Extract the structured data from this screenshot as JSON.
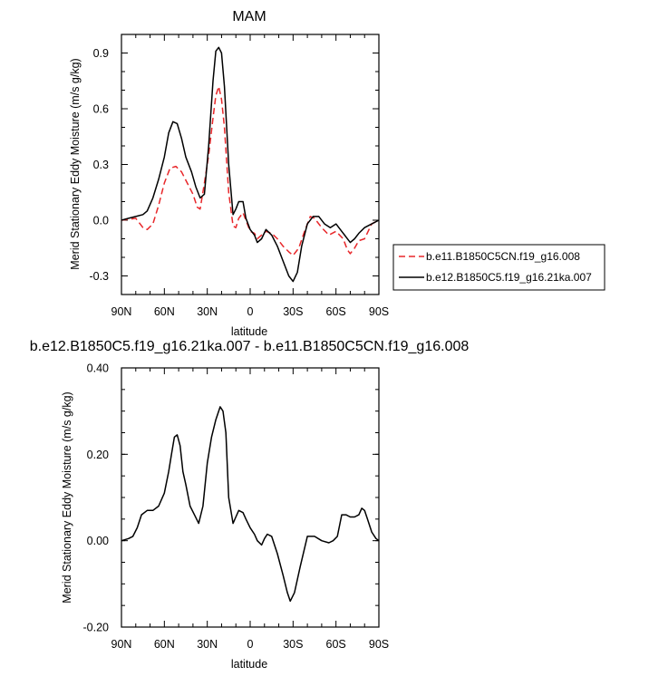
{
  "chart_data": [
    {
      "type": "line",
      "title": "MAM",
      "xlabel": "latitude",
      "ylabel": "Merid Stationary Eddy Moisture (m/s g/kg)",
      "xlim": [
        90,
        -90
      ],
      "ylim": [
        -0.4,
        1.0
      ],
      "xticks": [
        {
          "value": 90,
          "label": "90N"
        },
        {
          "value": 60,
          "label": "60N"
        },
        {
          "value": 30,
          "label": "30N"
        },
        {
          "value": 0,
          "label": "0"
        },
        {
          "value": -30,
          "label": "30S"
        },
        {
          "value": -60,
          "label": "60S"
        },
        {
          "value": -90,
          "label": "90S"
        }
      ],
      "yticks": [
        {
          "value": -0.3,
          "label": "-0.3"
        },
        {
          "value": 0,
          "label": "0.0"
        },
        {
          "value": 0.3,
          "label": "0.3"
        },
        {
          "value": 0.6,
          "label": "0.6"
        },
        {
          "value": 0.9,
          "label": "0.9"
        }
      ],
      "legend_position": "right",
      "series": [
        {
          "name": "b.e11.B1850C5CN.f19_g16.008",
          "color": "#e8272a",
          "dash": "dashed",
          "x": [
            90,
            85,
            80,
            75,
            72,
            68,
            64,
            60,
            56,
            52,
            48,
            44,
            40,
            37,
            35,
            32,
            29,
            26,
            24,
            22,
            20,
            18,
            15,
            12,
            10,
            8,
            5,
            3,
            0,
            -3,
            -5,
            -8,
            -11,
            -15,
            -19,
            -23,
            -27,
            -30,
            -34,
            -38,
            -42,
            -45,
            -50,
            -55,
            -60,
            -65,
            -68,
            -70,
            -73,
            -76,
            -80,
            -85,
            -90
          ],
          "y": [
            0.0,
            0.005,
            0.01,
            -0.04,
            -0.05,
            -0.02,
            0.08,
            0.2,
            0.28,
            0.29,
            0.26,
            0.2,
            0.14,
            0.07,
            0.06,
            0.2,
            0.35,
            0.55,
            0.67,
            0.72,
            0.65,
            0.5,
            0.15,
            -0.03,
            -0.04,
            0.01,
            0.04,
            0.0,
            -0.06,
            -0.07,
            -0.1,
            -0.08,
            -0.06,
            -0.07,
            -0.1,
            -0.14,
            -0.17,
            -0.19,
            -0.15,
            -0.06,
            0.02,
            0.01,
            -0.04,
            -0.08,
            -0.06,
            -0.1,
            -0.16,
            -0.18,
            -0.15,
            -0.11,
            -0.1,
            -0.02,
            0.0
          ]
        },
        {
          "name": "b.e12.B1850C5.f19_g16.21ka.007",
          "color": "#000000",
          "dash": "solid",
          "x": [
            90,
            85,
            80,
            75,
            72,
            68,
            64,
            60,
            57,
            54,
            51,
            48,
            45,
            41,
            38,
            35,
            32,
            29,
            26,
            24,
            22,
            20,
            18,
            15,
            12,
            10,
            8,
            5,
            3,
            0,
            -3,
            -5,
            -8,
            -11,
            -15,
            -19,
            -23,
            -27,
            -30,
            -33,
            -36,
            -40,
            -44,
            -48,
            -52,
            -56,
            -60,
            -64,
            -67,
            -70,
            -73,
            -76,
            -80,
            -85,
            -90
          ],
          "y": [
            0.0,
            0.01,
            0.02,
            0.03,
            0.05,
            0.12,
            0.22,
            0.34,
            0.47,
            0.53,
            0.52,
            0.44,
            0.34,
            0.26,
            0.18,
            0.12,
            0.14,
            0.4,
            0.75,
            0.91,
            0.93,
            0.9,
            0.72,
            0.3,
            0.03,
            0.06,
            0.1,
            0.1,
            0.01,
            -0.05,
            -0.08,
            -0.12,
            -0.1,
            -0.05,
            -0.08,
            -0.14,
            -0.22,
            -0.3,
            -0.33,
            -0.28,
            -0.14,
            -0.02,
            0.02,
            0.02,
            -0.02,
            -0.04,
            -0.02,
            -0.06,
            -0.09,
            -0.12,
            -0.1,
            -0.07,
            -0.04,
            -0.02,
            0.0
          ]
        }
      ]
    },
    {
      "type": "line",
      "title": "b.e12.B1850C5.f19_g16.21ka.007 - b.e11.B1850C5CN.f19_g16.008",
      "xlabel": "latitude",
      "ylabel": "Merid Stationary Eddy Moisture (m/s g/kg)",
      "xlim": [
        90,
        -90
      ],
      "ylim": [
        -0.2,
        0.4
      ],
      "xticks": [
        {
          "value": 90,
          "label": "90N"
        },
        {
          "value": 60,
          "label": "60N"
        },
        {
          "value": 30,
          "label": "30N"
        },
        {
          "value": 0,
          "label": "0"
        },
        {
          "value": -30,
          "label": "30S"
        },
        {
          "value": -60,
          "label": "60S"
        },
        {
          "value": -90,
          "label": "90S"
        }
      ],
      "yticks": [
        {
          "value": -0.2,
          "label": "-0.20"
        },
        {
          "value": 0.0,
          "label": "0.00"
        },
        {
          "value": 0.2,
          "label": "0.20"
        },
        {
          "value": 0.4,
          "label": "0.40"
        }
      ],
      "series": [
        {
          "color": "#000000",
          "dash": "solid",
          "x": [
            90,
            85,
            82,
            79,
            76,
            72,
            68,
            64,
            60,
            57,
            55,
            53,
            51,
            49,
            47,
            45,
            42,
            39,
            36,
            33,
            30,
            27,
            24,
            21,
            19,
            17,
            15,
            12,
            10,
            8,
            5,
            3,
            0,
            -3,
            -5,
            -8,
            -10,
            -12,
            -15,
            -19,
            -23,
            -26,
            -28,
            -31,
            -35,
            -40,
            -45,
            -50,
            -55,
            -58,
            -61,
            -64,
            -67,
            -70,
            -73,
            -76,
            -78,
            -80,
            -82,
            -85,
            -88,
            -90
          ],
          "y": [
            0.0,
            0.005,
            0.01,
            0.03,
            0.06,
            0.07,
            0.07,
            0.08,
            0.11,
            0.16,
            0.2,
            0.24,
            0.245,
            0.22,
            0.16,
            0.13,
            0.08,
            0.06,
            0.04,
            0.08,
            0.18,
            0.24,
            0.28,
            0.31,
            0.3,
            0.25,
            0.1,
            0.04,
            0.055,
            0.07,
            0.065,
            0.05,
            0.03,
            0.015,
            0.0,
            -0.01,
            0.005,
            0.015,
            0.01,
            -0.03,
            -0.08,
            -0.12,
            -0.14,
            -0.12,
            -0.06,
            0.01,
            0.01,
            0.0,
            -0.005,
            0.0,
            0.01,
            0.06,
            0.06,
            0.055,
            0.055,
            0.06,
            0.075,
            0.07,
            0.05,
            0.02,
            0.005,
            0.0
          ]
        }
      ]
    }
  ]
}
